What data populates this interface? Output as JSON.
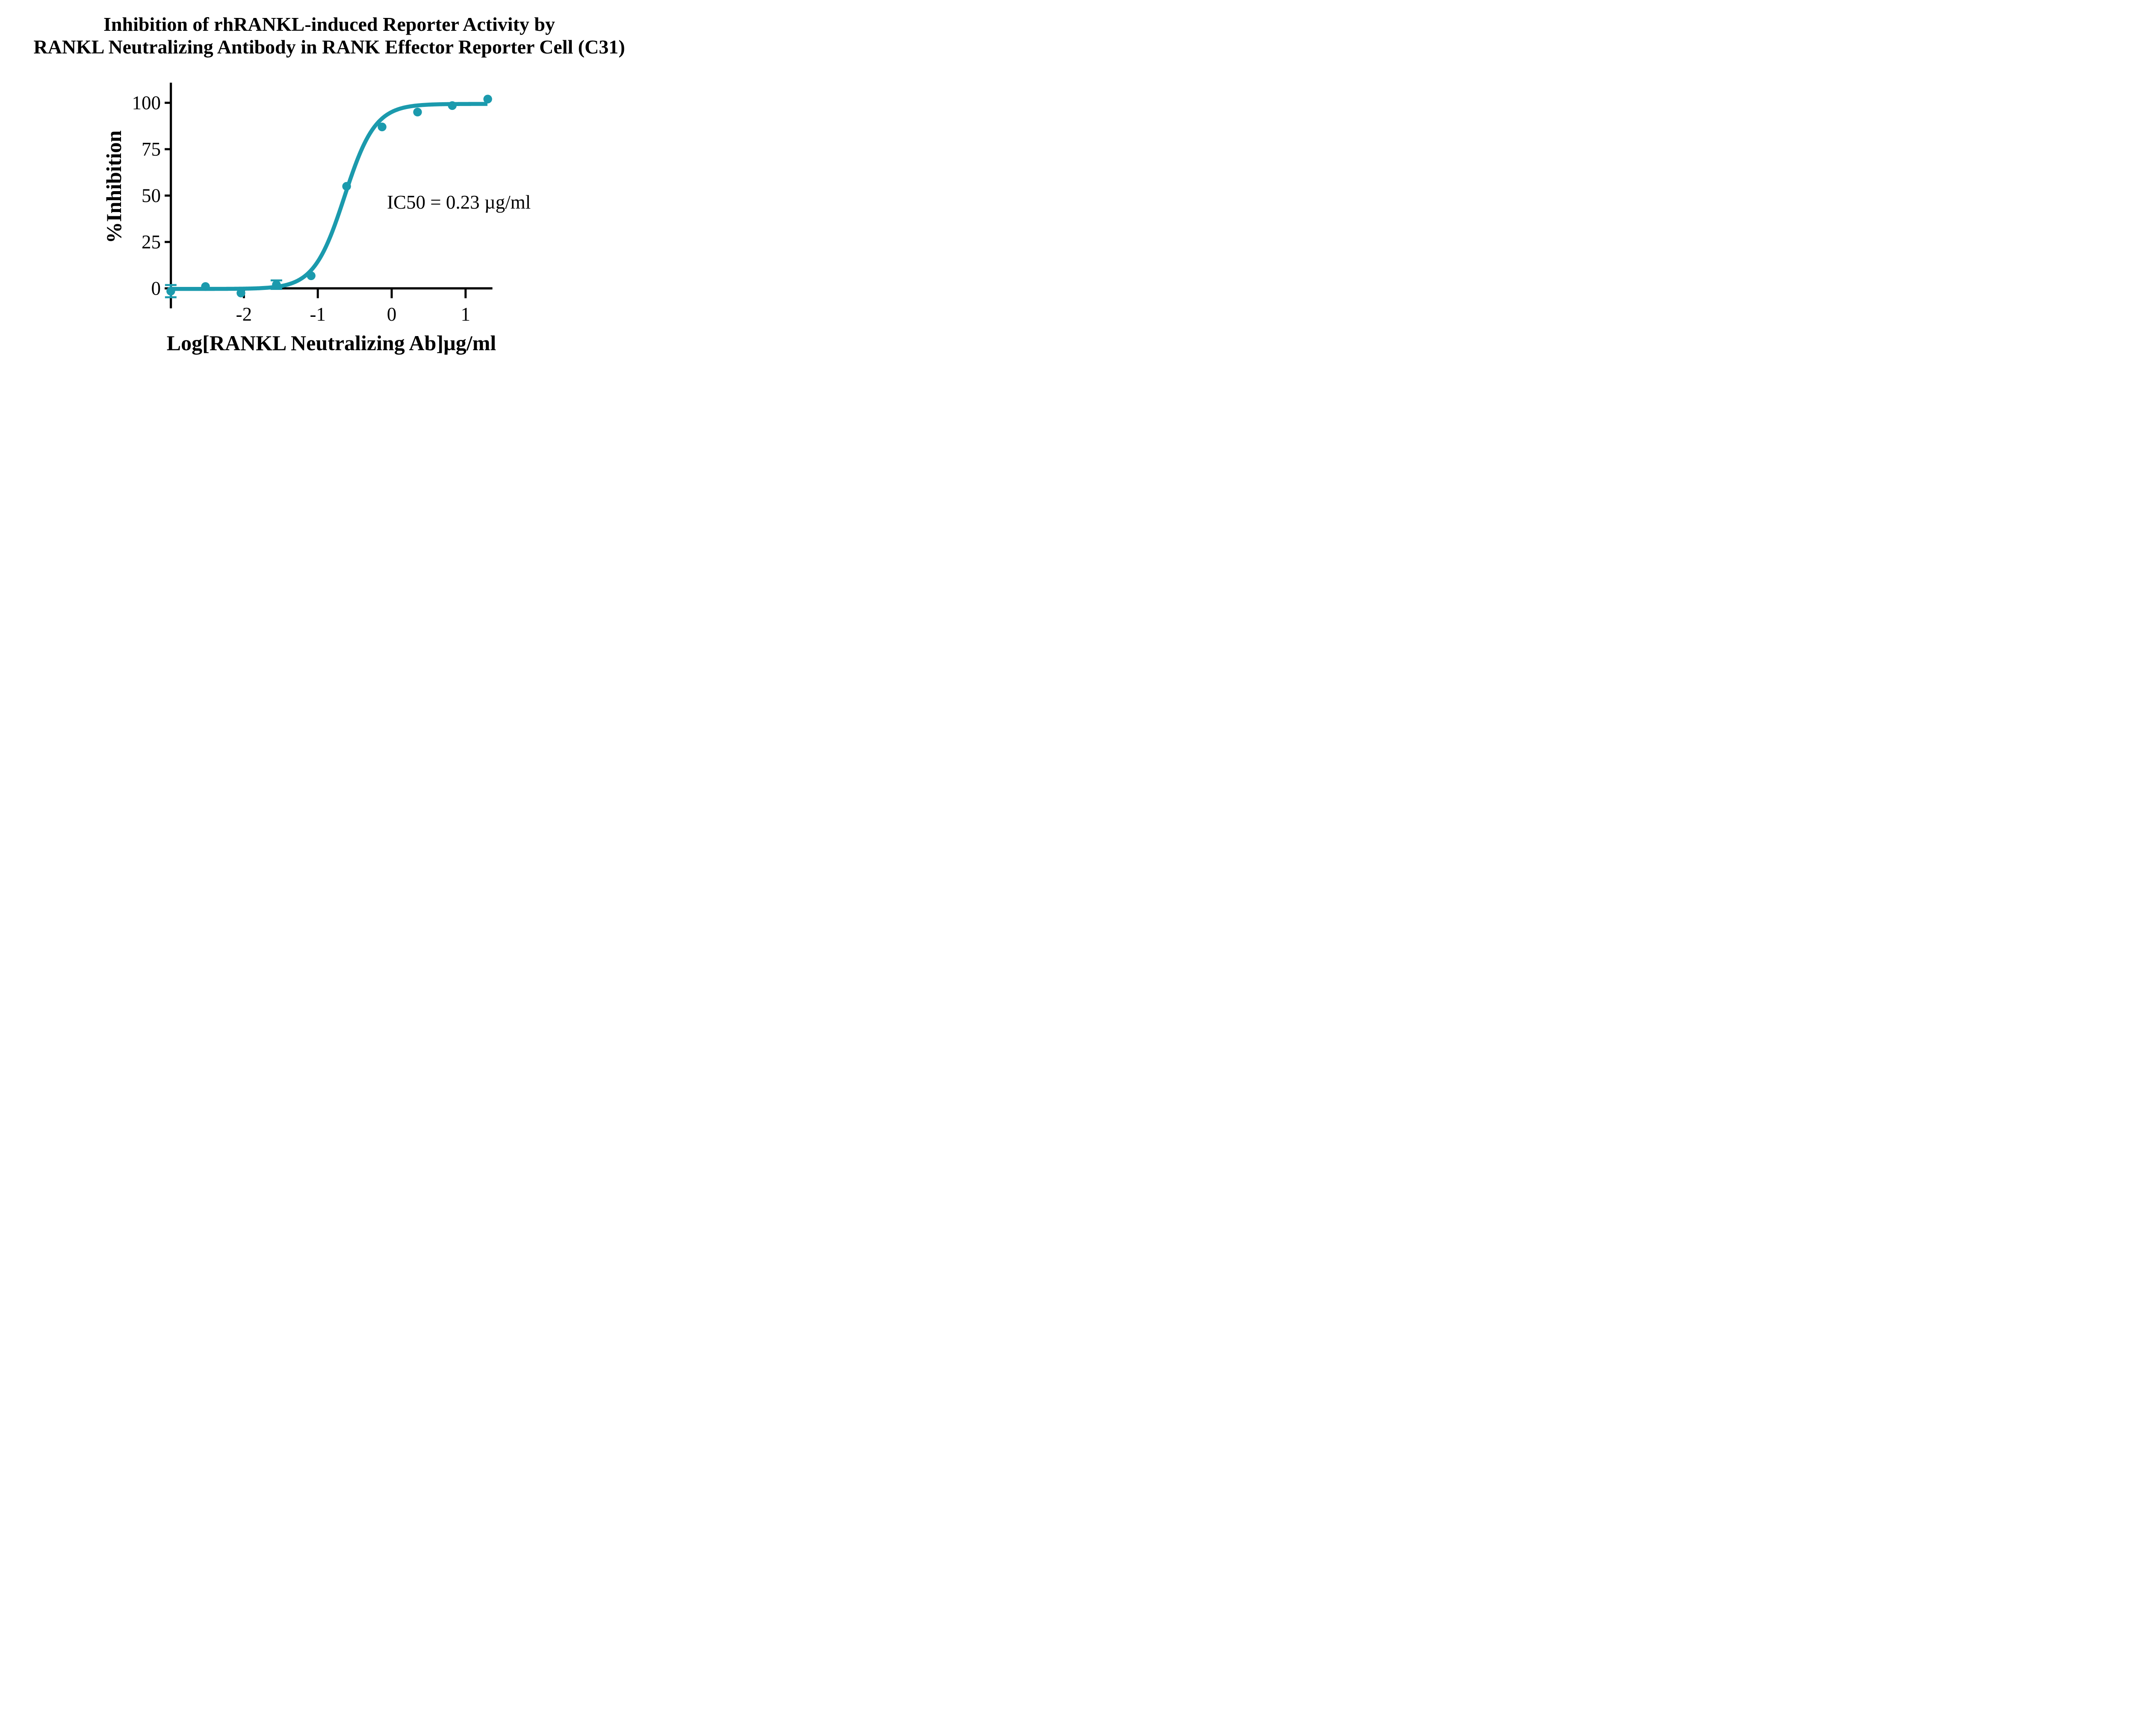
{
  "title": {
    "line1": "Inhibition of rhRANKL-induced Reporter Activity by",
    "line2": "RANKL Neutralizing Antibody in RANK Effector Reporter Cell (C31)"
  },
  "colors": {
    "curve": "#1B9AAD",
    "axis": "#000000",
    "background": "#FFFFFF"
  },
  "chart_data": {
    "type": "scatter",
    "title": "Inhibition of rhRANKL-induced Reporter Activity by RANKL Neutralizing Antibody in RANK Effector Reporter Cell (C31)",
    "xlabel": "Log[RANKL Neutralizing Ab]µg/ml",
    "ylabel": "%Inhibition",
    "annotation": "IC50 = 0.23 µg/ml",
    "legend": "none",
    "grid": false,
    "x_ticks": [
      -2,
      -1,
      0,
      1
    ],
    "x_tick_labels": [
      "-2",
      "-1",
      "0",
      "1"
    ],
    "y_ticks": [
      0,
      25,
      50,
      75,
      100
    ],
    "y_tick_labels": [
      "0",
      "25",
      "50",
      "75",
      "100"
    ],
    "xlim": [
      -2.99,
      1.35
    ],
    "ylim": [
      0,
      100
    ],
    "points": [
      {
        "x": -2.99,
        "y": -1.5,
        "err": 3.3
      },
      {
        "x": -2.52,
        "y": 1.0,
        "err": null
      },
      {
        "x": -2.04,
        "y": -2.5,
        "err": null
      },
      {
        "x": -1.56,
        "y": 2.0,
        "err": 2.3
      },
      {
        "x": -1.09,
        "y": 6.8,
        "err": null
      },
      {
        "x": -0.61,
        "y": 55.0,
        "err": null
      },
      {
        "x": -0.13,
        "y": 87.0,
        "err": null
      },
      {
        "x": 0.35,
        "y": 95.0,
        "err": null
      },
      {
        "x": 0.82,
        "y": 98.5,
        "err": null
      },
      {
        "x": 1.3,
        "y": 102.0,
        "err": null
      }
    ],
    "fit_curve": {
      "model": "four-parameter logistic (sigmoidal dose-response)",
      "bottom": -0.3,
      "top": 99.4,
      "log_ic50": -0.638,
      "ic50_ug_ml": 0.23,
      "hill_slope": 2.1,
      "x_start": -2.988,
      "x_end": 1.301
    }
  }
}
